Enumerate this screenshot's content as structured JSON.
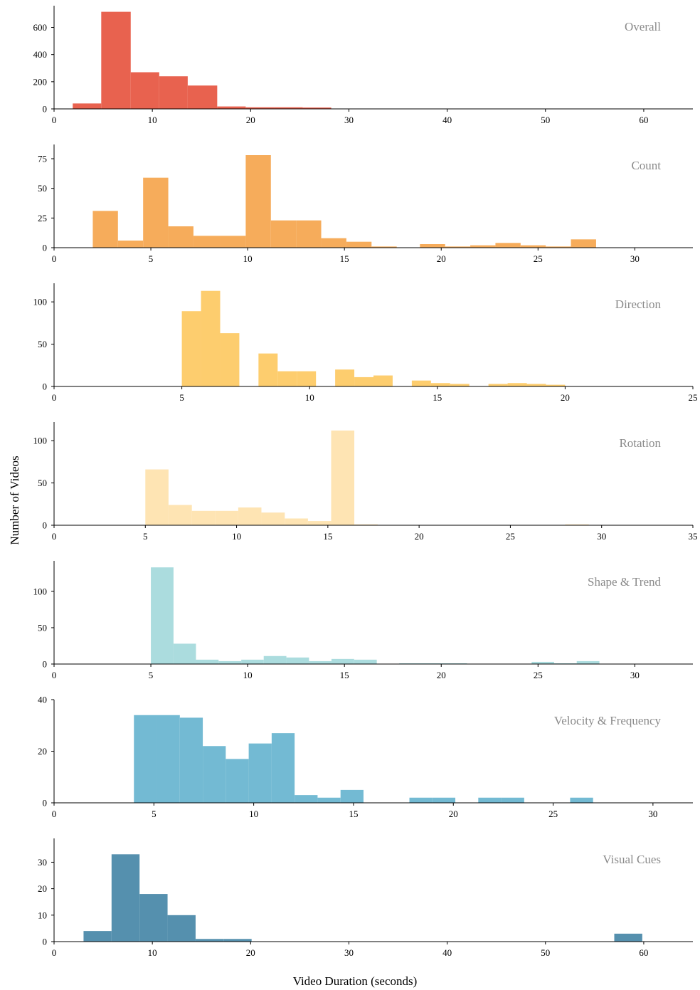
{
  "figure": {
    "ylabel": "Number of Videos",
    "xlabel": "Video Duration (seconds)"
  },
  "chart_data": [
    {
      "type": "bar",
      "title": "Overall",
      "color": "#E8624F",
      "xlim": [
        0,
        65
      ],
      "ylim": [
        0,
        760
      ],
      "xticks": [
        0,
        10,
        20,
        30,
        40,
        50,
        60
      ],
      "yticks": [
        0,
        200,
        400,
        600
      ],
      "bins": [
        {
          "x0": 1.9,
          "x1": 4.8,
          "value": 40
        },
        {
          "x0": 4.8,
          "x1": 7.8,
          "value": 715
        },
        {
          "x0": 7.8,
          "x1": 10.7,
          "value": 270
        },
        {
          "x0": 10.7,
          "x1": 13.6,
          "value": 240
        },
        {
          "x0": 13.6,
          "x1": 16.6,
          "value": 172
        },
        {
          "x0": 16.6,
          "x1": 19.5,
          "value": 18
        },
        {
          "x0": 19.5,
          "x1": 22.4,
          "value": 12
        },
        {
          "x0": 22.4,
          "x1": 25.3,
          "value": 12
        },
        {
          "x0": 25.3,
          "x1": 28.2,
          "value": 10
        }
      ]
    },
    {
      "type": "bar",
      "title": "Count",
      "color": "#F6AC5B",
      "xlim": [
        0,
        33
      ],
      "ylim": [
        0,
        87
      ],
      "xticks": [
        0,
        5,
        10,
        15,
        20,
        25,
        30
      ],
      "yticks": [
        0,
        25,
        50,
        75
      ],
      "bins": [
        {
          "x0": 2.0,
          "x1": 3.3,
          "value": 31
        },
        {
          "x0": 3.3,
          "x1": 4.6,
          "value": 6
        },
        {
          "x0": 4.6,
          "x1": 5.9,
          "value": 59
        },
        {
          "x0": 5.9,
          "x1": 7.2,
          "value": 18
        },
        {
          "x0": 7.2,
          "x1": 8.6,
          "value": 10
        },
        {
          "x0": 8.6,
          "x1": 9.9,
          "value": 10
        },
        {
          "x0": 9.9,
          "x1": 11.2,
          "value": 78
        },
        {
          "x0": 11.2,
          "x1": 12.5,
          "value": 23
        },
        {
          "x0": 12.5,
          "x1": 13.8,
          "value": 23
        },
        {
          "x0": 13.8,
          "x1": 15.1,
          "value": 8
        },
        {
          "x0": 15.1,
          "x1": 16.4,
          "value": 5
        },
        {
          "x0": 16.4,
          "x1": 17.7,
          "value": 1
        },
        {
          "x0": 18.9,
          "x1": 20.2,
          "value": 3
        },
        {
          "x0": 20.2,
          "x1": 21.5,
          "value": 1
        },
        {
          "x0": 21.5,
          "x1": 22.8,
          "value": 2
        },
        {
          "x0": 22.8,
          "x1": 24.1,
          "value": 4
        },
        {
          "x0": 24.1,
          "x1": 25.4,
          "value": 2
        },
        {
          "x0": 25.4,
          "x1": 26.7,
          "value": 1
        },
        {
          "x0": 26.7,
          "x1": 28.0,
          "value": 7
        }
      ]
    },
    {
      "type": "bar",
      "title": "Direction",
      "color": "#FDCD6E",
      "xlim": [
        0,
        25
      ],
      "ylim": [
        0,
        122
      ],
      "xticks": [
        0,
        5,
        10,
        15,
        20,
        25
      ],
      "yticks": [
        0,
        50,
        100
      ],
      "bins": [
        {
          "x0": 5.0,
          "x1": 5.75,
          "value": 89
        },
        {
          "x0": 5.75,
          "x1": 6.5,
          "value": 113
        },
        {
          "x0": 6.5,
          "x1": 7.25,
          "value": 63
        },
        {
          "x0": 8.0,
          "x1": 8.75,
          "value": 39
        },
        {
          "x0": 8.75,
          "x1": 9.5,
          "value": 18
        },
        {
          "x0": 9.5,
          "x1": 10.25,
          "value": 18
        },
        {
          "x0": 11.0,
          "x1": 11.75,
          "value": 20
        },
        {
          "x0": 11.75,
          "x1": 12.5,
          "value": 11
        },
        {
          "x0": 12.5,
          "x1": 13.25,
          "value": 13
        },
        {
          "x0": 14.0,
          "x1": 14.75,
          "value": 7
        },
        {
          "x0": 14.75,
          "x1": 15.5,
          "value": 4
        },
        {
          "x0": 15.5,
          "x1": 16.25,
          "value": 3
        },
        {
          "x0": 17.0,
          "x1": 17.75,
          "value": 3
        },
        {
          "x0": 17.75,
          "x1": 18.5,
          "value": 4
        },
        {
          "x0": 18.5,
          "x1": 19.25,
          "value": 3
        },
        {
          "x0": 19.25,
          "x1": 20.0,
          "value": 2
        }
      ]
    },
    {
      "type": "bar",
      "title": "Rotation",
      "color": "#FEE4B3",
      "xlim": [
        0,
        35
      ],
      "ylim": [
        0,
        122
      ],
      "xticks": [
        0,
        5,
        10,
        15,
        20,
        25,
        30,
        35
      ],
      "yticks": [
        0,
        50,
        100
      ],
      "bins": [
        {
          "x0": 5.0,
          "x1": 6.27,
          "value": 66
        },
        {
          "x0": 6.27,
          "x1": 7.55,
          "value": 24
        },
        {
          "x0": 7.55,
          "x1": 8.82,
          "value": 17
        },
        {
          "x0": 8.82,
          "x1": 10.09,
          "value": 17
        },
        {
          "x0": 10.09,
          "x1": 11.36,
          "value": 21
        },
        {
          "x0": 11.36,
          "x1": 12.64,
          "value": 15
        },
        {
          "x0": 12.64,
          "x1": 13.91,
          "value": 8
        },
        {
          "x0": 13.91,
          "x1": 15.18,
          "value": 5
        },
        {
          "x0": 15.18,
          "x1": 16.45,
          "value": 112
        },
        {
          "x0": 16.45,
          "x1": 17.73,
          "value": 1
        },
        {
          "x0": 28.0,
          "x1": 29.3,
          "value": 1
        }
      ]
    },
    {
      "type": "bar",
      "title": "Shape & Trend",
      "color": "#ABDCDE",
      "xlim": [
        0,
        33
      ],
      "ylim": [
        0,
        142
      ],
      "xticks": [
        0,
        5,
        10,
        15,
        20,
        25,
        30
      ],
      "yticks": [
        0,
        50,
        100
      ],
      "bins": [
        {
          "x0": 5.0,
          "x1": 6.17,
          "value": 133
        },
        {
          "x0": 6.17,
          "x1": 7.33,
          "value": 28
        },
        {
          "x0": 7.33,
          "x1": 8.5,
          "value": 6
        },
        {
          "x0": 8.5,
          "x1": 9.67,
          "value": 4
        },
        {
          "x0": 9.67,
          "x1": 10.83,
          "value": 6
        },
        {
          "x0": 10.83,
          "x1": 12.0,
          "value": 11
        },
        {
          "x0": 12.0,
          "x1": 13.17,
          "value": 9
        },
        {
          "x0": 13.17,
          "x1": 14.33,
          "value": 4
        },
        {
          "x0": 14.33,
          "x1": 15.5,
          "value": 7
        },
        {
          "x0": 15.5,
          "x1": 16.67,
          "value": 6
        },
        {
          "x0": 17.83,
          "x1": 19.0,
          "value": 1
        },
        {
          "x0": 19.0,
          "x1": 20.17,
          "value": 1
        },
        {
          "x0": 20.17,
          "x1": 21.33,
          "value": 1
        },
        {
          "x0": 24.67,
          "x1": 25.83,
          "value": 3
        },
        {
          "x0": 25.83,
          "x1": 27.0,
          "value": 1
        },
        {
          "x0": 27.0,
          "x1": 28.17,
          "value": 4
        }
      ]
    },
    {
      "type": "bar",
      "title": "Velocity & Frequency",
      "color": "#73BAD3",
      "xlim": [
        0,
        32
      ],
      "ylim": [
        0,
        40
      ],
      "xticks": [
        0,
        5,
        10,
        15,
        20,
        25,
        30
      ],
      "yticks": [
        0,
        20,
        40
      ],
      "bins": [
        {
          "x0": 4.0,
          "x1": 5.15,
          "value": 34
        },
        {
          "x0": 5.15,
          "x1": 6.3,
          "value": 34
        },
        {
          "x0": 6.3,
          "x1": 7.45,
          "value": 33
        },
        {
          "x0": 7.45,
          "x1": 8.6,
          "value": 22
        },
        {
          "x0": 8.6,
          "x1": 9.75,
          "value": 17
        },
        {
          "x0": 9.75,
          "x1": 10.9,
          "value": 23
        },
        {
          "x0": 10.9,
          "x1": 12.05,
          "value": 27
        },
        {
          "x0": 12.05,
          "x1": 13.2,
          "value": 3
        },
        {
          "x0": 13.2,
          "x1": 14.35,
          "value": 2
        },
        {
          "x0": 14.35,
          "x1": 15.5,
          "value": 5
        },
        {
          "x0": 17.8,
          "x1": 18.95,
          "value": 2
        },
        {
          "x0": 18.95,
          "x1": 20.1,
          "value": 2
        },
        {
          "x0": 21.25,
          "x1": 22.4,
          "value": 2
        },
        {
          "x0": 22.4,
          "x1": 23.55,
          "value": 2
        },
        {
          "x0": 25.85,
          "x1": 27.0,
          "value": 2
        }
      ]
    },
    {
      "type": "bar",
      "title": "Visual Cues",
      "color": "#5590AE",
      "xlim": [
        0,
        65
      ],
      "ylim": [
        0,
        39
      ],
      "xticks": [
        0,
        10,
        20,
        30,
        40,
        50,
        60
      ],
      "yticks": [
        0,
        10,
        20,
        30
      ],
      "bins": [
        {
          "x0": 3.0,
          "x1": 5.85,
          "value": 4
        },
        {
          "x0": 5.85,
          "x1": 8.7,
          "value": 33
        },
        {
          "x0": 8.7,
          "x1": 11.55,
          "value": 18
        },
        {
          "x0": 11.55,
          "x1": 14.4,
          "value": 10
        },
        {
          "x0": 14.4,
          "x1": 17.25,
          "value": 1
        },
        {
          "x0": 17.25,
          "x1": 20.1,
          "value": 1
        },
        {
          "x0": 57.0,
          "x1": 59.85,
          "value": 3
        }
      ]
    }
  ]
}
